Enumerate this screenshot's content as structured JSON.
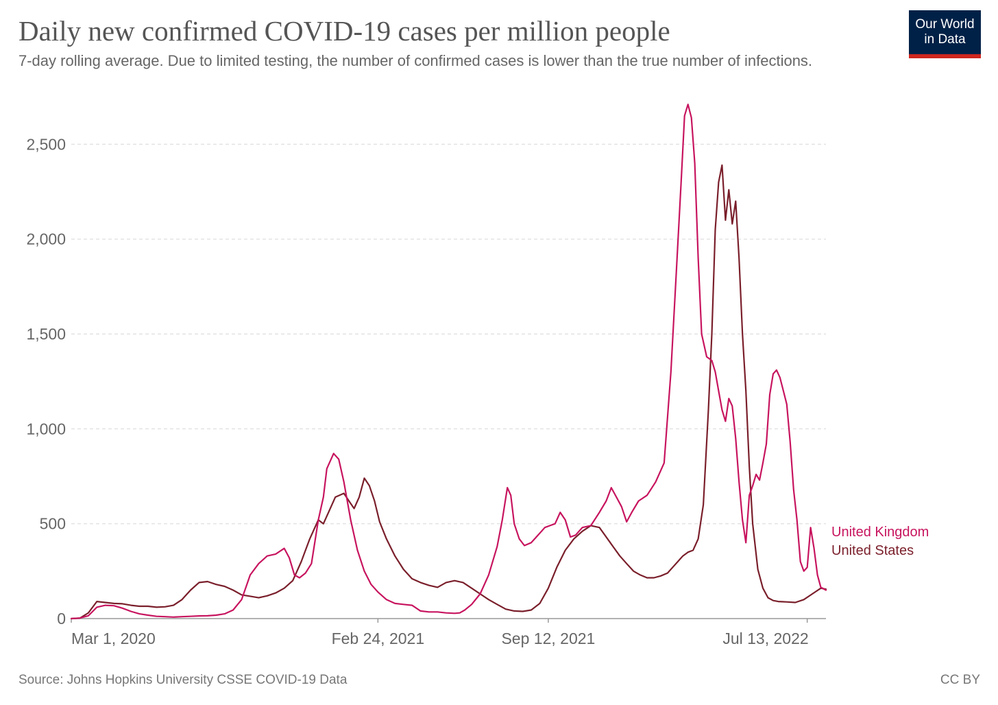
{
  "header": {
    "title": "Daily new confirmed COVID-19 cases per million people",
    "subtitle": "7-day rolling average. Due to limited testing, the number of confirmed cases is lower than the true number of infections.",
    "logo_line1": "Our World",
    "logo_line2": "in Data"
  },
  "footer": {
    "source": "Source: Johns Hopkins University CSSE COVID-19 Data",
    "license": "CC BY"
  },
  "colors": {
    "uk": "#c7145e",
    "us": "#7a1f2b",
    "grid": "#dcdcdc",
    "axis": "#999999",
    "tick_text": "#666666"
  },
  "chart_data": {
    "type": "line",
    "title": "Daily new confirmed COVID-19 cases per million people",
    "xlabel": "",
    "ylabel": "",
    "ylim": [
      0,
      2700
    ],
    "yticks": [
      0,
      500,
      1000,
      1500,
      2000,
      2500
    ],
    "ytick_labels": [
      "0",
      "500",
      "1,000",
      "1,500",
      "2,000",
      "2,500"
    ],
    "xlim": [
      0,
      886
    ],
    "xticks": [
      0,
      360,
      560,
      864
    ],
    "xtick_labels": [
      "Mar 1, 2020",
      "Feb 24, 2021",
      "Sep 12, 2021",
      "Jul 13, 2022"
    ],
    "x_unit": "days since Mar 1, 2020",
    "grid": true,
    "legend": "inline labels at line ends, right",
    "series": [
      {
        "name": "United Kingdom",
        "color": "#c7145e",
        "points": [
          [
            0,
            0
          ],
          [
            10,
            3
          ],
          [
            20,
            15
          ],
          [
            30,
            60
          ],
          [
            40,
            70
          ],
          [
            50,
            68
          ],
          [
            60,
            55
          ],
          [
            70,
            38
          ],
          [
            80,
            25
          ],
          [
            90,
            18
          ],
          [
            100,
            12
          ],
          [
            110,
            10
          ],
          [
            120,
            8
          ],
          [
            130,
            10
          ],
          [
            140,
            12
          ],
          [
            150,
            14
          ],
          [
            160,
            15
          ],
          [
            170,
            18
          ],
          [
            180,
            25
          ],
          [
            190,
            45
          ],
          [
            200,
            100
          ],
          [
            210,
            230
          ],
          [
            220,
            290
          ],
          [
            230,
            330
          ],
          [
            240,
            340
          ],
          [
            250,
            370
          ],
          [
            256,
            320
          ],
          [
            262,
            230
          ],
          [
            268,
            215
          ],
          [
            275,
            240
          ],
          [
            282,
            290
          ],
          [
            290,
            520
          ],
          [
            296,
            640
          ],
          [
            300,
            790
          ],
          [
            308,
            870
          ],
          [
            314,
            840
          ],
          [
            320,
            720
          ],
          [
            328,
            520
          ],
          [
            336,
            360
          ],
          [
            344,
            250
          ],
          [
            352,
            180
          ],
          [
            360,
            140
          ],
          [
            370,
            100
          ],
          [
            380,
            80
          ],
          [
            390,
            75
          ],
          [
            400,
            70
          ],
          [
            410,
            40
          ],
          [
            420,
            35
          ],
          [
            430,
            35
          ],
          [
            440,
            30
          ],
          [
            450,
            28
          ],
          [
            456,
            30
          ],
          [
            462,
            45
          ],
          [
            470,
            75
          ],
          [
            480,
            130
          ],
          [
            490,
            230
          ],
          [
            500,
            380
          ],
          [
            506,
            520
          ],
          [
            512,
            690
          ],
          [
            516,
            650
          ],
          [
            520,
            500
          ],
          [
            526,
            420
          ],
          [
            532,
            385
          ],
          [
            540,
            400
          ],
          [
            548,
            440
          ],
          [
            556,
            480
          ],
          [
            562,
            490
          ],
          [
            568,
            500
          ],
          [
            574,
            560
          ],
          [
            580,
            520
          ],
          [
            586,
            430
          ],
          [
            592,
            440
          ],
          [
            600,
            480
          ],
          [
            610,
            490
          ],
          [
            620,
            560
          ],
          [
            628,
            620
          ],
          [
            634,
            690
          ],
          [
            640,
            640
          ],
          [
            646,
            590
          ],
          [
            652,
            510
          ],
          [
            658,
            560
          ],
          [
            666,
            620
          ],
          [
            676,
            650
          ],
          [
            686,
            720
          ],
          [
            696,
            820
          ],
          [
            704,
            1300
          ],
          [
            710,
            1800
          ],
          [
            716,
            2300
          ],
          [
            720,
            2650
          ],
          [
            724,
            2710
          ],
          [
            728,
            2640
          ],
          [
            732,
            2400
          ],
          [
            736,
            1900
          ],
          [
            740,
            1500
          ],
          [
            746,
            1380
          ],
          [
            752,
            1360
          ],
          [
            756,
            1300
          ],
          [
            760,
            1200
          ],
          [
            764,
            1100
          ],
          [
            768,
            1040
          ],
          [
            772,
            1160
          ],
          [
            776,
            1120
          ],
          [
            780,
            950
          ],
          [
            784,
            720
          ],
          [
            788,
            520
          ],
          [
            792,
            400
          ],
          [
            796,
            650
          ],
          [
            800,
            700
          ],
          [
            804,
            760
          ],
          [
            808,
            730
          ],
          [
            812,
            820
          ],
          [
            816,
            920
          ],
          [
            820,
            1180
          ],
          [
            824,
            1290
          ],
          [
            828,
            1310
          ],
          [
            832,
            1270
          ],
          [
            836,
            1200
          ],
          [
            840,
            1130
          ],
          [
            844,
            930
          ],
          [
            848,
            680
          ],
          [
            852,
            520
          ],
          [
            856,
            300
          ],
          [
            860,
            250
          ],
          [
            864,
            270
          ],
          [
            868,
            480
          ],
          [
            872,
            370
          ],
          [
            876,
            230
          ],
          [
            880,
            165
          ],
          [
            886,
            150
          ]
        ]
      },
      {
        "name": "United States",
        "color": "#7a1f2b",
        "points": [
          [
            0,
            0
          ],
          [
            10,
            2
          ],
          [
            20,
            30
          ],
          [
            30,
            90
          ],
          [
            40,
            85
          ],
          [
            50,
            80
          ],
          [
            60,
            78
          ],
          [
            70,
            70
          ],
          [
            80,
            65
          ],
          [
            90,
            65
          ],
          [
            100,
            60
          ],
          [
            110,
            62
          ],
          [
            120,
            70
          ],
          [
            130,
            100
          ],
          [
            140,
            150
          ],
          [
            150,
            190
          ],
          [
            160,
            195
          ],
          [
            170,
            180
          ],
          [
            180,
            170
          ],
          [
            190,
            150
          ],
          [
            200,
            125
          ],
          [
            210,
            118
          ],
          [
            220,
            110
          ],
          [
            230,
            120
          ],
          [
            240,
            135
          ],
          [
            250,
            160
          ],
          [
            260,
            200
          ],
          [
            270,
            300
          ],
          [
            280,
            420
          ],
          [
            290,
            520
          ],
          [
            296,
            500
          ],
          [
            302,
            560
          ],
          [
            310,
            640
          ],
          [
            320,
            660
          ],
          [
            326,
            620
          ],
          [
            332,
            580
          ],
          [
            338,
            640
          ],
          [
            344,
            740
          ],
          [
            350,
            700
          ],
          [
            356,
            620
          ],
          [
            362,
            510
          ],
          [
            370,
            420
          ],
          [
            380,
            330
          ],
          [
            390,
            260
          ],
          [
            400,
            210
          ],
          [
            410,
            190
          ],
          [
            420,
            175
          ],
          [
            430,
            165
          ],
          [
            440,
            190
          ],
          [
            450,
            200
          ],
          [
            460,
            190
          ],
          [
            470,
            160
          ],
          [
            480,
            130
          ],
          [
            490,
            100
          ],
          [
            500,
            75
          ],
          [
            510,
            50
          ],
          [
            520,
            40
          ],
          [
            530,
            38
          ],
          [
            540,
            45
          ],
          [
            550,
            80
          ],
          [
            560,
            160
          ],
          [
            570,
            270
          ],
          [
            580,
            360
          ],
          [
            590,
            420
          ],
          [
            600,
            460
          ],
          [
            610,
            490
          ],
          [
            620,
            480
          ],
          [
            628,
            430
          ],
          [
            636,
            380
          ],
          [
            644,
            330
          ],
          [
            652,
            290
          ],
          [
            660,
            250
          ],
          [
            668,
            230
          ],
          [
            676,
            215
          ],
          [
            684,
            215
          ],
          [
            692,
            225
          ],
          [
            700,
            240
          ],
          [
            706,
            270
          ],
          [
            712,
            300
          ],
          [
            718,
            330
          ],
          [
            724,
            350
          ],
          [
            730,
            360
          ],
          [
            736,
            420
          ],
          [
            742,
            600
          ],
          [
            748,
            1100
          ],
          [
            752,
            1500
          ],
          [
            756,
            2050
          ],
          [
            760,
            2300
          ],
          [
            764,
            2390
          ],
          [
            768,
            2100
          ],
          [
            772,
            2260
          ],
          [
            776,
            2080
          ],
          [
            780,
            2200
          ],
          [
            784,
            1900
          ],
          [
            788,
            1500
          ],
          [
            792,
            1200
          ],
          [
            796,
            800
          ],
          [
            800,
            500
          ],
          [
            806,
            260
          ],
          [
            812,
            160
          ],
          [
            818,
            110
          ],
          [
            824,
            95
          ],
          [
            830,
            90
          ],
          [
            840,
            88
          ],
          [
            850,
            85
          ],
          [
            860,
            100
          ],
          [
            870,
            130
          ],
          [
            880,
            160
          ],
          [
            886,
            155
          ]
        ]
      }
    ]
  }
}
